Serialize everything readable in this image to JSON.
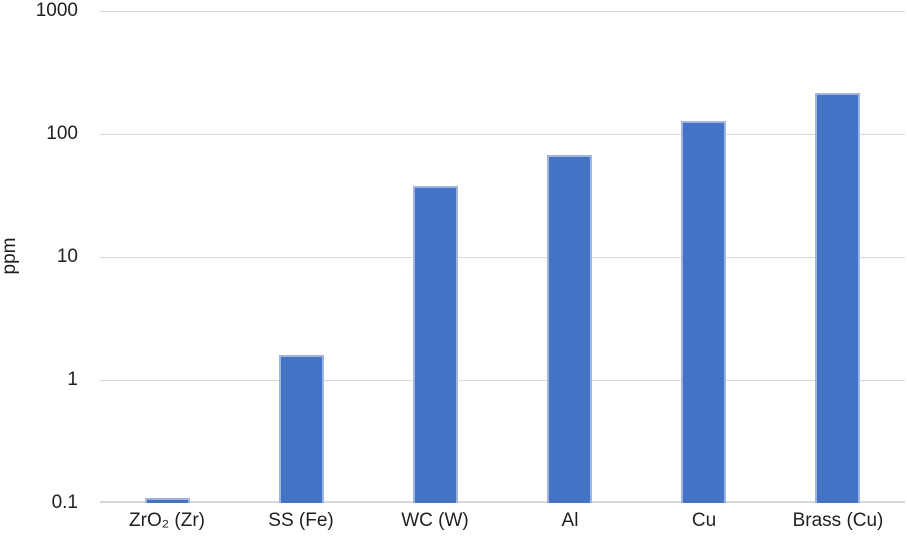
{
  "chart_data": {
    "type": "bar",
    "title": "",
    "xlabel": "",
    "ylabel": "ppm",
    "yscale": "log",
    "ylim": [
      0.1,
      1000
    ],
    "yticks": [
      1000,
      100,
      10,
      1,
      0.1
    ],
    "ytick_labels": [
      "1000",
      "100",
      "10",
      "1",
      "0.1"
    ],
    "grid": true,
    "legend": "none",
    "categories": [
      "ZrO₂ (Zr)",
      "SS (Fe)",
      "WC (W)",
      "Al",
      "Cu",
      "Brass (Cu)"
    ],
    "values": [
      0.11,
      1.6,
      38,
      68,
      127,
      215
    ],
    "bar_color": "#4472C4",
    "bar_border_color": "#9FB5DF",
    "gridline_color": "#D9D9D9",
    "text_color": "#1F1F1F"
  }
}
